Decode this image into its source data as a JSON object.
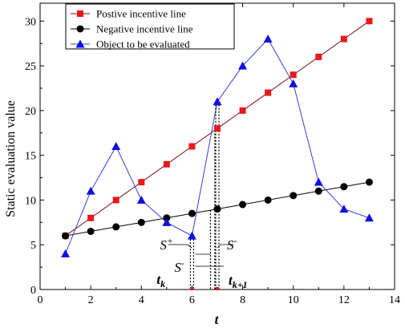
{
  "chart_data": {
    "type": "line",
    "xlabel": "t",
    "ylabel": "Static evaluation value",
    "xlim": [
      0,
      14
    ],
    "ylim": [
      0,
      32
    ],
    "xticks": [
      0,
      2,
      4,
      6,
      8,
      10,
      12,
      14
    ],
    "yticks": [
      0,
      5,
      10,
      15,
      20,
      25,
      30
    ],
    "grid": false,
    "legend_position": "top-left",
    "series": [
      {
        "name": "Postive incentive line",
        "marker": "square",
        "color": "#e8181c",
        "line_color": "#7a0c0c",
        "x": [
          1,
          2,
          3,
          4,
          5,
          6,
          7,
          8,
          9,
          10,
          11,
          12,
          13
        ],
        "values": [
          6,
          8,
          10,
          12,
          14,
          16,
          18,
          20,
          22,
          24,
          26,
          28,
          30
        ]
      },
      {
        "name": "Negative incentive line",
        "marker": "circle",
        "color": "#000000",
        "line_color": "#000000",
        "x": [
          1,
          2,
          3,
          4,
          5,
          6,
          7,
          8,
          9,
          10,
          11,
          12,
          13
        ],
        "values": [
          6,
          6.5,
          7,
          7.5,
          8,
          8.5,
          9,
          9.5,
          10,
          10.5,
          11,
          11.5,
          12
        ]
      },
      {
        "name": "Object to be evaluated",
        "marker": "triangle",
        "color": "#1010e0",
        "line_color": "#3b3bd8",
        "x": [
          1,
          2,
          3,
          4,
          5,
          6,
          7,
          8,
          9,
          10,
          11,
          12,
          13
        ],
        "values": [
          4,
          11,
          16,
          10,
          7.5,
          6,
          21,
          25,
          28,
          23,
          12,
          9,
          8
        ]
      }
    ],
    "annotations": {
      "t_k": {
        "label": "t",
        "sub": "k",
        "x": 6
      },
      "t_k1": {
        "label": "t",
        "sub": "k+1",
        "x": 7
      },
      "s_plus": {
        "label": "S",
        "sup": "+"
      },
      "s_minus": {
        "label": "S",
        "sup": "-"
      },
      "s_mid": {
        "label": "S",
        "sup": "-"
      },
      "intersection_x": [
        6.9,
        6.73
      ]
    }
  }
}
